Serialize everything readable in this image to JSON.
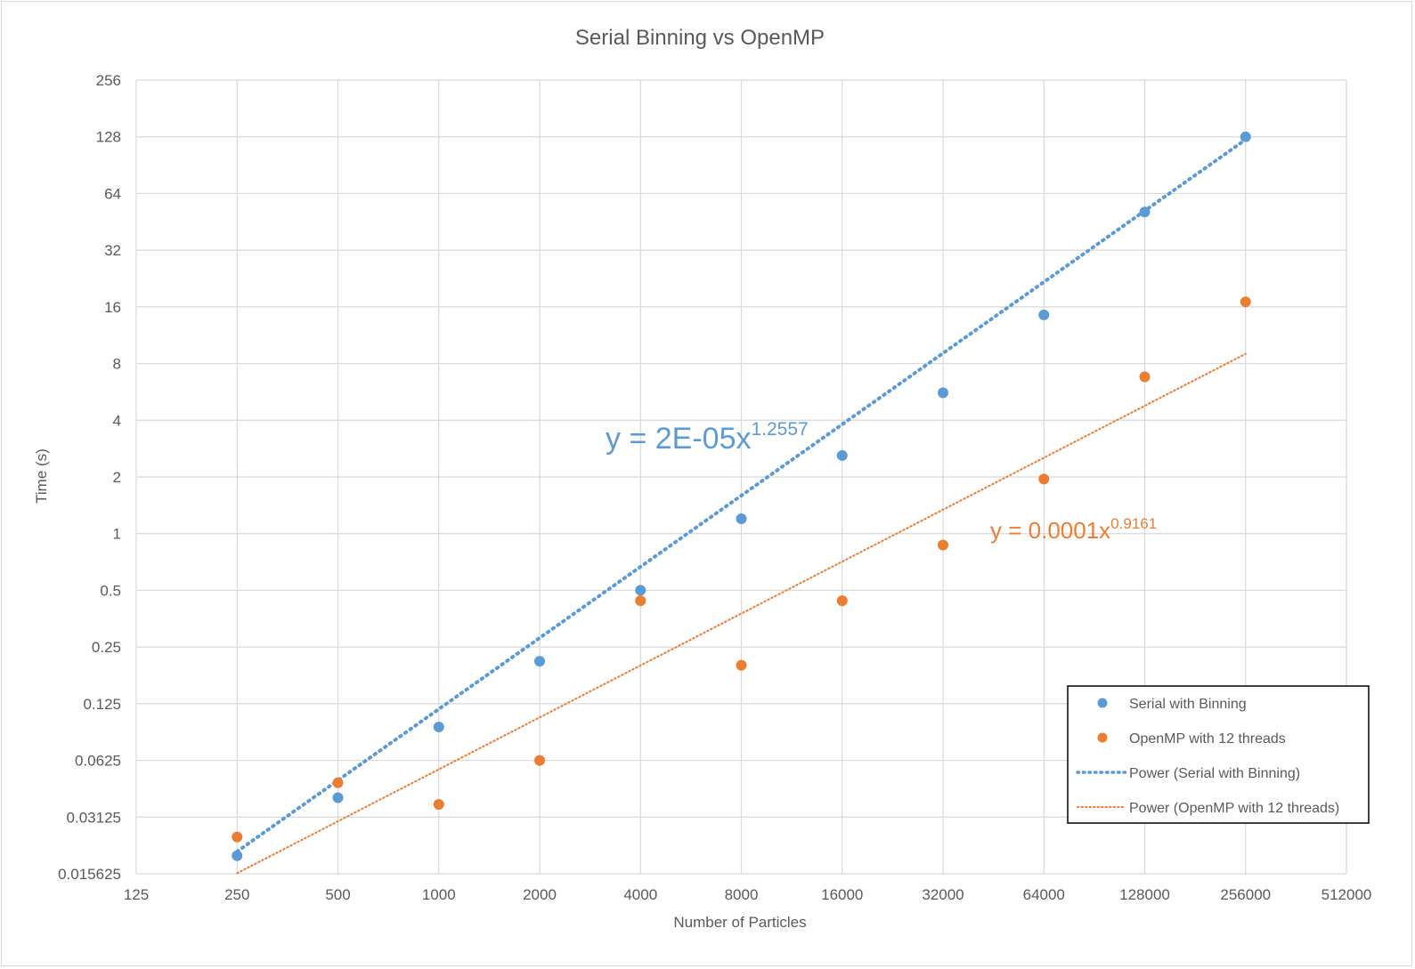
{
  "chart_data": {
    "type": "scatter",
    "title": "Serial Binning vs OpenMP",
    "xlabel": "Number of Particles",
    "ylabel": "Time (s)",
    "x_scale": "log2",
    "y_scale": "log2",
    "xlim": [
      125,
      512000
    ],
    "ylim": [
      0.015625,
      256
    ],
    "x_ticks": [
      "125",
      "250",
      "500",
      "1000",
      "2000",
      "4000",
      "8000",
      "16000",
      "32000",
      "64000",
      "128000",
      "256000",
      "512000"
    ],
    "x_tick_values": [
      125,
      250,
      500,
      1000,
      2000,
      4000,
      8000,
      16000,
      32000,
      64000,
      128000,
      256000,
      512000
    ],
    "y_ticks": [
      "256",
      "128",
      "64",
      "32",
      "16",
      "8",
      "4",
      "2",
      "1",
      "0.5",
      "0.25",
      "0.125",
      "0.0625",
      "0.03125",
      "0.015625"
    ],
    "y_tick_values": [
      256,
      128,
      64,
      32,
      16,
      8,
      4,
      2,
      1,
      0.5,
      0.25,
      0.125,
      0.0625,
      0.03125,
      0.015625
    ],
    "grid": true,
    "legend_position": "bottom-right",
    "series": [
      {
        "name": "Serial with Binning",
        "kind": "markers",
        "color": "#5b9bd5",
        "x": [
          250,
          500,
          1000,
          2000,
          4000,
          8000,
          16000,
          32000,
          64000,
          128000,
          256000
        ],
        "y": [
          0.0195,
          0.0396,
          0.094,
          0.21,
          0.5,
          1.2,
          2.6,
          5.6,
          14.5,
          51,
          128
        ]
      },
      {
        "name": "OpenMP with 12 threads",
        "kind": "markers",
        "color": "#ed7d31",
        "x": [
          250,
          500,
          1000,
          2000,
          4000,
          8000,
          16000,
          32000,
          64000,
          128000,
          256000
        ],
        "y": [
          0.0245,
          0.0475,
          0.0365,
          0.0625,
          0.44,
          0.2,
          0.44,
          0.87,
          1.95,
          6.8,
          17
        ]
      },
      {
        "name": "Power  (Serial with Binning)",
        "kind": "trendline",
        "style": "dotted-thick",
        "color": "#5b9bd5",
        "coefficient": 2e-05,
        "exponent": 1.2557,
        "x_range": [
          250,
          256000
        ]
      },
      {
        "name": "Power  (OpenMP with 12 threads)",
        "kind": "trendline",
        "style": "dotted-thin",
        "color": "#ed7d31",
        "coefficient": 0.0001,
        "exponent": 0.9161,
        "x_range": [
          250,
          256000
        ]
      }
    ],
    "annotations": [
      {
        "series": "Power  (Serial with Binning)",
        "base": "y = 2E-05x",
        "power": "1.2557",
        "color": "#5b9bd5"
      },
      {
        "series": "Power  (OpenMP with 12 threads)",
        "base": "y = 0.0001x",
        "power": "0.9161",
        "color": "#ed7d31"
      }
    ]
  }
}
